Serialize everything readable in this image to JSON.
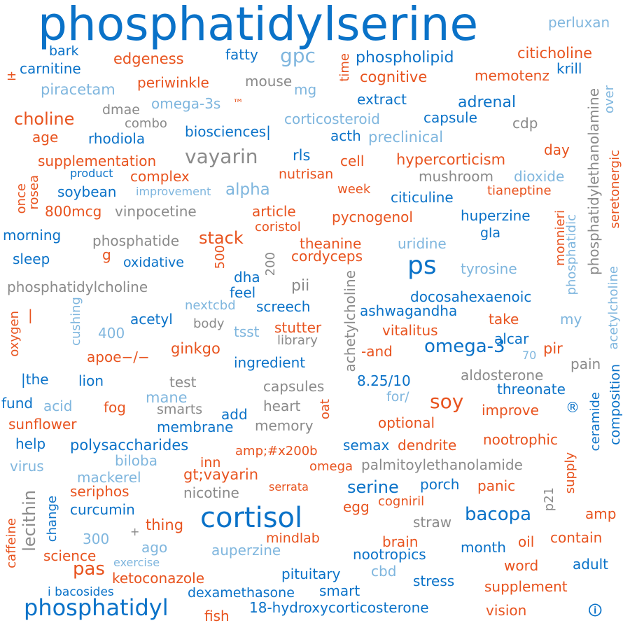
{
  "colors": {
    "blue": "#0a72c8",
    "orange": "#e8531e",
    "gray": "#8a8a8a",
    "lightblue": "#7fb6de"
  },
  "words": [
    "phosphatidylserine",
    "perluxan",
    "bark",
    "fatty",
    "gpc",
    "phospholipid",
    "citicholine",
    "carnitine",
    "edgeness",
    "krill",
    "±",
    "memotenz",
    "cognitive",
    "time",
    "mouse",
    "periwinkle",
    "mg",
    "piracetam",
    "omega-3s",
    "™",
    "extract",
    "adrenal",
    "dmae",
    "choline",
    "corticosteroid",
    "capsule",
    "over",
    "combo",
    "cdp",
    "age",
    "rhodiola",
    "biosciences|",
    "acth",
    "preclinical",
    "vayarin",
    "rls",
    "cell",
    "hypercorticism",
    "day",
    "supplementation",
    "product",
    "complex",
    "nutrisan",
    "mushroom",
    "dioxide",
    "rosea",
    "soybean",
    "improvement",
    "alpha",
    "week",
    "citiculine",
    "tianeptine",
    "once",
    "800mcg",
    "vinpocetine",
    "article",
    "pycnogenol",
    "huperzine",
    "seretonergic",
    "coristol",
    "gla",
    "monnieri",
    "morning",
    "phosphatide",
    "stack",
    "theanine",
    "uridine",
    "phosphatidylethanolamine",
    "sleep",
    "g",
    "500",
    "oxidative",
    "cordyceps",
    "ps",
    "200",
    "tyrosine",
    "phosphatidic",
    "phosphatidylcholine",
    "dha",
    "pii",
    "feel",
    "acetylcholine",
    "docosahexaenoic",
    "oxygen",
    "|",
    "nextcbd",
    "screech",
    "ashwagandha",
    "my",
    "cushing",
    "acetyl",
    "body",
    "take",
    "400",
    "tsst",
    "stutter",
    "vitalitus",
    "library",
    "omega-3",
    "achetylcholine",
    "alcar",
    "apoe−/−",
    "ginkgo",
    "-and",
    "pir",
    "70",
    "ingredient",
    "pain",
    "|the",
    "lion",
    "test",
    "aldosterone",
    "8.25/10",
    "capsules",
    "threonate",
    "fund",
    "acid",
    "mane",
    "for/",
    "soy",
    "®",
    "fog",
    "smarts",
    "heart",
    "oat",
    "ceramide",
    "improve",
    "sunflower",
    "add",
    "membrane",
    "memory",
    "optional",
    "composition",
    "help",
    "polysaccharides",
    "semax",
    "dendrite",
    "nootrophic",
    "biloba",
    "amp;#x200b",
    "supply",
    "virus",
    "inn",
    "omega",
    "palmitoylethanolamide",
    "mackerel",
    "gt;vayarin",
    "lecithin",
    "seriphos",
    "serine",
    "porch",
    "panic",
    "change",
    "serrata",
    "nicotine",
    "egg",
    "cogniril",
    "curcumin",
    "cortisol",
    "bacopa",
    "p21",
    "amp",
    "thing",
    "straw",
    "caffeine",
    "+",
    "mindlab",
    "brain",
    "300",
    "oil",
    "contain",
    "ago",
    "auperzine",
    "science",
    "nootropics",
    "month",
    "exercise",
    "word",
    "adult",
    "pas",
    "cbd",
    "ketoconazole",
    "pituitary",
    "stress",
    "supplement",
    "i bacosides",
    "dexamethasone",
    "smart",
    "phosphatidyl",
    "18-hydroxycorticosterone",
    "vision",
    "fish",
    "🛈"
  ]
}
